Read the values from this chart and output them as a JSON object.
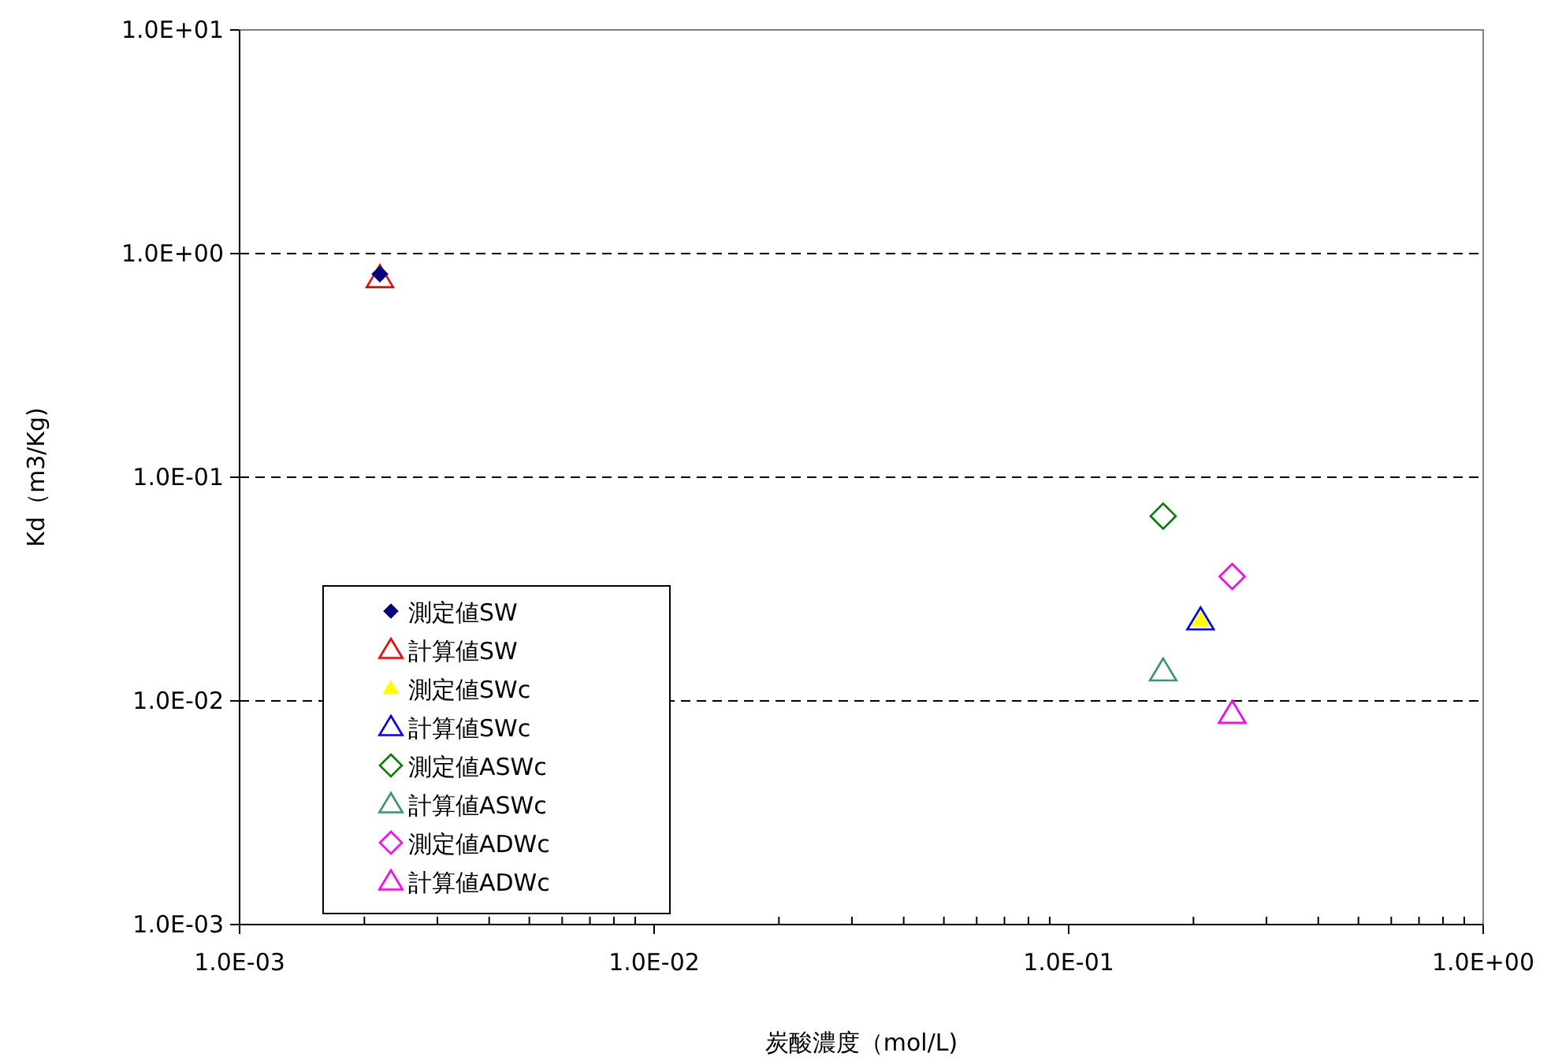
{
  "chart_data": {
    "type": "scatter",
    "xlabel": "炭酸濃度（mol/L)",
    "ylabel": "Kd（m3/Kg)",
    "log": "xy",
    "grid": "y",
    "legend": "bottom left",
    "xlim": [
      0.001,
      1
    ],
    "ylim": [
      0.001,
      10
    ],
    "xticks": [
      {
        "value": 0.001,
        "label": "1.0E-03"
      },
      {
        "value": 0.01,
        "label": "1.0E-02"
      },
      {
        "value": 0.1,
        "label": "1.0E-01"
      },
      {
        "value": 1,
        "label": "1.0E+00"
      }
    ],
    "yticks": [
      {
        "value": 0.001,
        "label": "1.0E-03"
      },
      {
        "value": 0.01,
        "label": "1.0E-02"
      },
      {
        "value": 0.1,
        "label": "1.0E-01"
      },
      {
        "value": 1,
        "label": "1.0E+00"
      },
      {
        "value": 10,
        "label": "1.0E+01"
      }
    ],
    "series": [
      {
        "name": "測定値SW",
        "color": "#000080",
        "marker": "diamond",
        "x": [
          0.00218
        ],
        "values": [
          0.81
        ]
      },
      {
        "name": "計算値SW",
        "color": "#ff0000",
        "marker": "triangle",
        "x": [
          0.00218
        ],
        "values": [
          0.78
        ]
      },
      {
        "name": "測定値SWc",
        "color": "#ffff00",
        "marker": "triangle",
        "x": [
          0.208
        ],
        "values": [
          0.023
        ]
      },
      {
        "name": "計算値SWc",
        "color": "#0000ff",
        "marker": "triangle",
        "x": [
          0.208
        ],
        "values": [
          0.023
        ]
      },
      {
        "name": "測定値ASWc",
        "color": "#008000",
        "marker": "diamond",
        "x": [
          0.169
        ],
        "values": [
          0.067
        ]
      },
      {
        "name": "計算値ASWc",
        "color": "#339966",
        "marker": "triangle",
        "x": [
          0.169
        ],
        "values": [
          0.0136
        ]
      },
      {
        "name": "測定値ADWc",
        "color": "#ff00ff",
        "marker": "diamond",
        "x": [
          0.248
        ],
        "values": [
          0.036
        ]
      },
      {
        "name": "計算値ADWc",
        "color": "#ff00ff",
        "marker": "triangle",
        "x": [
          0.248
        ],
        "values": [
          0.0088
        ]
      }
    ]
  }
}
